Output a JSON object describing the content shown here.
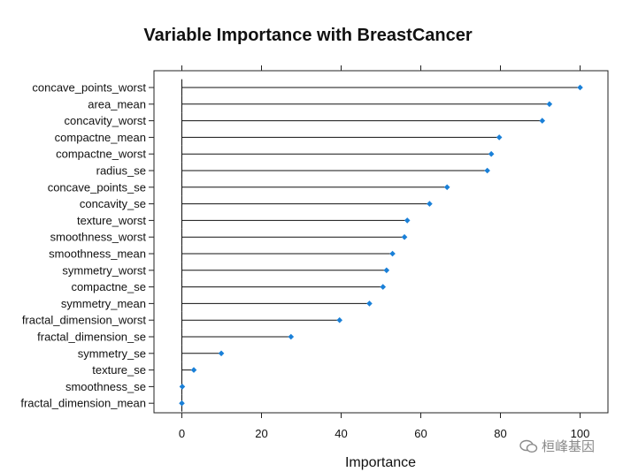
{
  "chart_data": {
    "type": "dot",
    "title": "Variable Importance with BreastCancer",
    "xlabel": "Importance",
    "ylabel": "",
    "xlim": [
      -7,
      107
    ],
    "xticks": [
      0,
      20,
      40,
      60,
      80,
      100
    ],
    "grid": false,
    "categories": [
      "concave_points_worst",
      "area_mean",
      "concavity_worst",
      "compactne_mean",
      "compactne_worst",
      "radius_se",
      "concave_points_se",
      "concavity_se",
      "texture_worst",
      "smoothness_worst",
      "smoothness_mean",
      "symmetry_worst",
      "compactne_se",
      "symmetry_mean",
      "fractal_dimension_worst",
      "fractal_dimension_se",
      "symmetry_se",
      "texture_se",
      "smoothness_se",
      "fractal_dimension_mean"
    ],
    "values": [
      100,
      92.3,
      90.5,
      79.7,
      77.7,
      76.7,
      66.6,
      62.2,
      56.6,
      55.9,
      52.9,
      51.4,
      50.5,
      47.1,
      39.6,
      27.4,
      9.9,
      3.0,
      0.1,
      0
    ],
    "point_color": "#1a80d8",
    "line_color": "#111111"
  },
  "watermark": {
    "text": "桓峰基因"
  }
}
